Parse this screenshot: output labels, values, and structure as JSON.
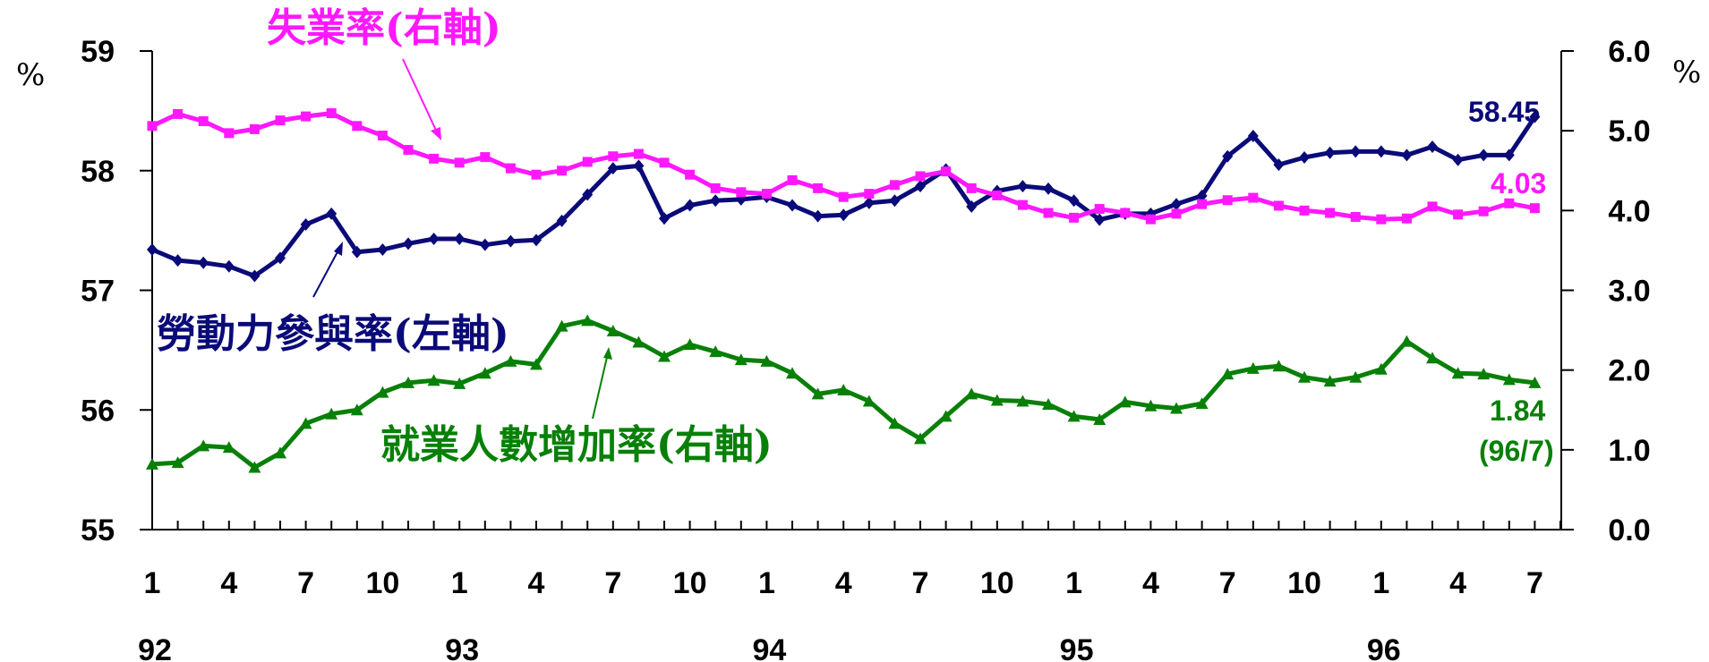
{
  "chart_data": {
    "type": "line",
    "left_axis": {
      "unit": "%",
      "ylim": [
        55,
        59
      ],
      "ticks": [
        "55",
        "56",
        "57",
        "58",
        "59"
      ]
    },
    "right_axis": {
      "unit": "%",
      "ylim": [
        0,
        6
      ],
      "ticks": [
        "0.0",
        "1.0",
        "2.0",
        "3.0",
        "4.0",
        "5.0",
        "6.0"
      ]
    },
    "x_month_ticks": [
      {
        "i": 0,
        "label": "1"
      },
      {
        "i": 3,
        "label": "4"
      },
      {
        "i": 6,
        "label": "7"
      },
      {
        "i": 9,
        "label": "10"
      },
      {
        "i": 12,
        "label": "1"
      },
      {
        "i": 15,
        "label": "4"
      },
      {
        "i": 18,
        "label": "7"
      },
      {
        "i": 21,
        "label": "10"
      },
      {
        "i": 24,
        "label": "1"
      },
      {
        "i": 27,
        "label": "4"
      },
      {
        "i": 30,
        "label": "7"
      },
      {
        "i": 33,
        "label": "10"
      },
      {
        "i": 36,
        "label": "1"
      },
      {
        "i": 39,
        "label": "4"
      },
      {
        "i": 42,
        "label": "7"
      },
      {
        "i": 45,
        "label": "10"
      },
      {
        "i": 48,
        "label": "1"
      },
      {
        "i": 51,
        "label": "4"
      },
      {
        "i": 54,
        "label": "7"
      }
    ],
    "x_year_labels": [
      {
        "i": 0,
        "label": "92"
      },
      {
        "i": 12,
        "label": "93"
      },
      {
        "i": 24,
        "label": "94"
      },
      {
        "i": 36,
        "label": "95"
      },
      {
        "i": 48,
        "label": "96"
      }
    ],
    "series": [
      {
        "name": "勞動力參與率(左軸)",
        "axis": "left",
        "color": "#0a0a78",
        "marker": "diamond",
        "values": [
          57.34,
          57.25,
          57.23,
          57.2,
          57.12,
          57.27,
          57.55,
          57.64,
          57.32,
          57.34,
          57.39,
          57.43,
          57.43,
          57.38,
          57.41,
          57.42,
          57.58,
          57.8,
          58.02,
          58.04,
          57.6,
          57.71,
          57.75,
          57.76,
          57.78,
          57.71,
          57.62,
          57.63,
          57.73,
          57.75,
          57.87,
          58.01,
          57.7,
          57.83,
          57.87,
          57.85,
          57.75,
          57.59,
          57.64,
          57.64,
          57.72,
          57.79,
          58.12,
          58.29,
          58.05,
          58.11,
          58.15,
          58.16,
          58.16,
          58.13,
          58.2,
          58.09,
          58.13,
          58.13,
          58.45
        ]
      },
      {
        "name": "失業率(右軸)",
        "axis": "right",
        "color": "#ff18ff",
        "marker": "square",
        "values": [
          5.06,
          5.21,
          5.12,
          4.97,
          5.02,
          5.13,
          5.18,
          5.22,
          5.06,
          4.94,
          4.76,
          4.65,
          4.6,
          4.67,
          4.53,
          4.45,
          4.5,
          4.61,
          4.68,
          4.71,
          4.6,
          4.45,
          4.28,
          4.23,
          4.21,
          4.38,
          4.28,
          4.17,
          4.21,
          4.32,
          4.43,
          4.49,
          4.28,
          4.19,
          4.07,
          3.97,
          3.91,
          4.02,
          3.97,
          3.89,
          3.96,
          4.08,
          4.13,
          4.16,
          4.06,
          4.0,
          3.97,
          3.92,
          3.89,
          3.9,
          4.05,
          3.95,
          3.99,
          4.09,
          4.03
        ]
      },
      {
        "name": "就業人數增加率(右軸)",
        "axis": "right",
        "color": "#088008",
        "marker": "triangle",
        "values": [
          0.82,
          0.84,
          1.05,
          1.03,
          0.78,
          0.96,
          1.33,
          1.45,
          1.5,
          1.72,
          1.84,
          1.87,
          1.83,
          1.96,
          2.11,
          2.07,
          2.55,
          2.62,
          2.49,
          2.35,
          2.17,
          2.32,
          2.23,
          2.13,
          2.11,
          1.96,
          1.7,
          1.75,
          1.61,
          1.33,
          1.14,
          1.42,
          1.7,
          1.62,
          1.61,
          1.57,
          1.42,
          1.38,
          1.6,
          1.55,
          1.52,
          1.58,
          1.95,
          2.02,
          2.05,
          1.91,
          1.86,
          1.91,
          2.01,
          2.36,
          2.15,
          1.96,
          1.95,
          1.88,
          1.84
        ]
      }
    ],
    "annotations": {
      "unemployment": "失業率(右軸)",
      "participation": "勞動力參與率(左軸)",
      "employment_growth": "就業人數增加率(右軸)"
    },
    "end_labels": {
      "participation": "58.45",
      "unemployment": "4.03",
      "employment_value": "1.84",
      "employment_date": "(96/7)"
    }
  }
}
